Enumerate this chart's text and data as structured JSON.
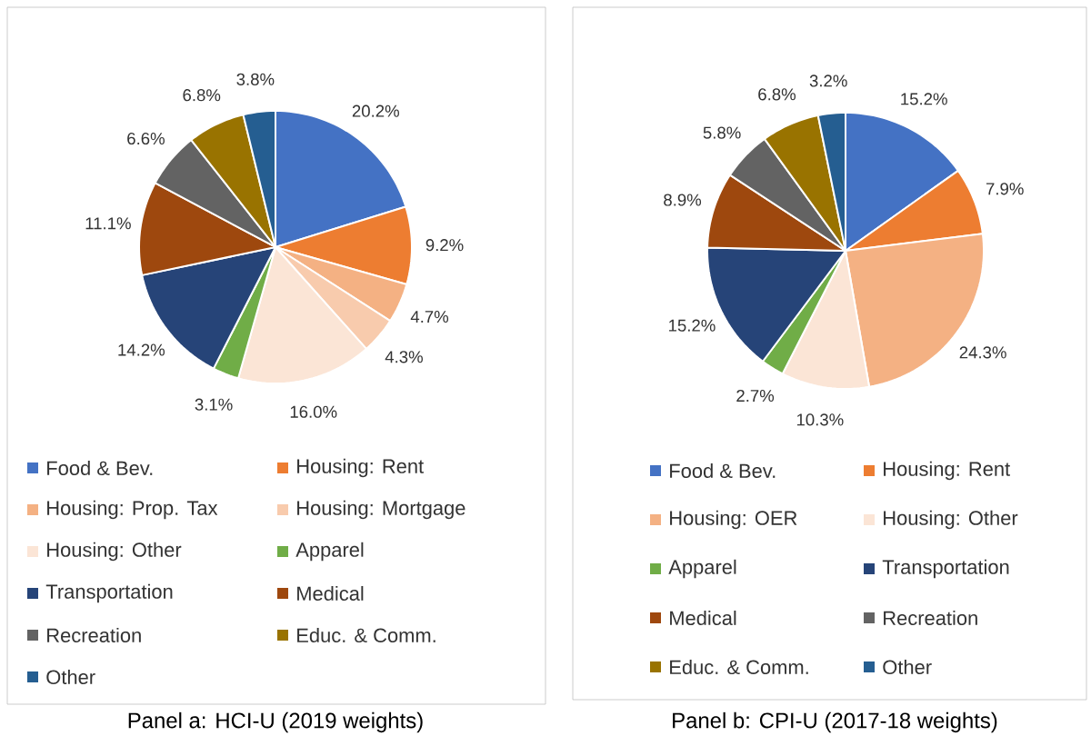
{
  "chart_data": [
    {
      "type": "pie",
      "categories": [
        "Food & Bev.",
        "Housing: Rent",
        "Housing: Prop. Tax",
        "Housing: Mortgage",
        "Housing: Other",
        "Apparel",
        "Transportation",
        "Medical",
        "Recreation",
        "Educ. & Comm.",
        "Other"
      ],
      "values": [
        20.2,
        9.2,
        4.7,
        4.3,
        16.0,
        3.1,
        14.2,
        11.1,
        6.6,
        6.8,
        3.8
      ],
      "value_labels": [
        "20.2%",
        "9.2%",
        "4.7%",
        "4.3%",
        "16.0%",
        "3.1%",
        "14.2%",
        "11.1%",
        "6.6%",
        "6.8%",
        "3.8%"
      ],
      "colors": [
        "#4472c4",
        "#ed7d31",
        "#f4b183",
        "#f8cbad",
        "#fbe5d6",
        "#70ad47",
        "#264478",
        "#9e480e",
        "#636363",
        "#997300",
        "#255e91"
      ],
      "legend": "bottom",
      "annotations": [
        "Panel a: HCI-U (2019 weights)"
      ]
    },
    {
      "type": "pie",
      "categories": [
        "Food & Bev.",
        "Housing: Rent",
        "Housing: OER",
        "Housing: Other",
        "Apparel",
        "Transportation",
        "Medical",
        "Recreation",
        "Educ. & Comm.",
        "Other"
      ],
      "values": [
        15.2,
        7.9,
        24.3,
        10.3,
        2.7,
        15.2,
        8.9,
        5.8,
        6.8,
        3.2
      ],
      "value_labels": [
        "15.2%",
        "7.9%",
        "24.3%",
        "10.3%",
        "2.7%",
        "15.2%",
        "8.9%",
        "5.8%",
        "6.8%",
        "3.2%"
      ],
      "colors": [
        "#4472c4",
        "#ed7d31",
        "#f4b183",
        "#fbe5d6",
        "#70ad47",
        "#264478",
        "#9e480e",
        "#636363",
        "#997300",
        "#255e91"
      ],
      "legend": "bottom",
      "annotations": [
        "Panel b: CPI-U (2017-18 weights)"
      ]
    }
  ]
}
